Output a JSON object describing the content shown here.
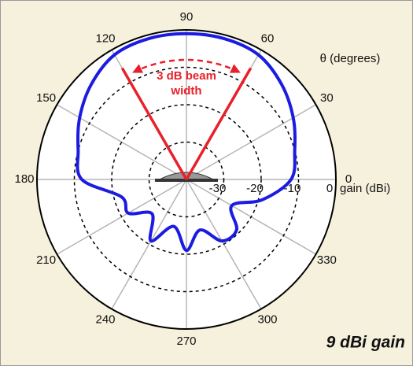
{
  "chart_data": {
    "type": "polar",
    "title": "9 dBi gain",
    "theta_label": "θ (degrees)",
    "r_label": "gain (dBi)",
    "rlim": [
      -40,
      0
    ],
    "rticks": [
      -30,
      -20,
      -10,
      0
    ],
    "thetaticks": [
      0,
      30,
      60,
      90,
      120,
      150,
      180,
      210,
      240,
      270,
      300,
      330
    ],
    "theta": [
      0,
      15,
      30,
      45,
      60,
      75,
      90,
      105,
      120,
      135,
      150,
      165,
      180,
      195,
      210,
      225,
      240,
      255,
      270,
      285,
      300,
      315,
      330,
      345
    ],
    "values": [
      -12,
      -10,
      -7,
      -4,
      -1.5,
      -1,
      -1,
      -1,
      -1.5,
      -4,
      -7,
      -10,
      -12,
      -22,
      -22,
      -27,
      -21,
      -27,
      -21,
      -26,
      -21,
      -21,
      -26,
      -19
    ],
    "color": "#1c1ce0",
    "beam_angles": [
      60,
      120
    ],
    "beam_color": "#e8202a",
    "annotation": [
      "3 dB beam",
      "width"
    ]
  }
}
